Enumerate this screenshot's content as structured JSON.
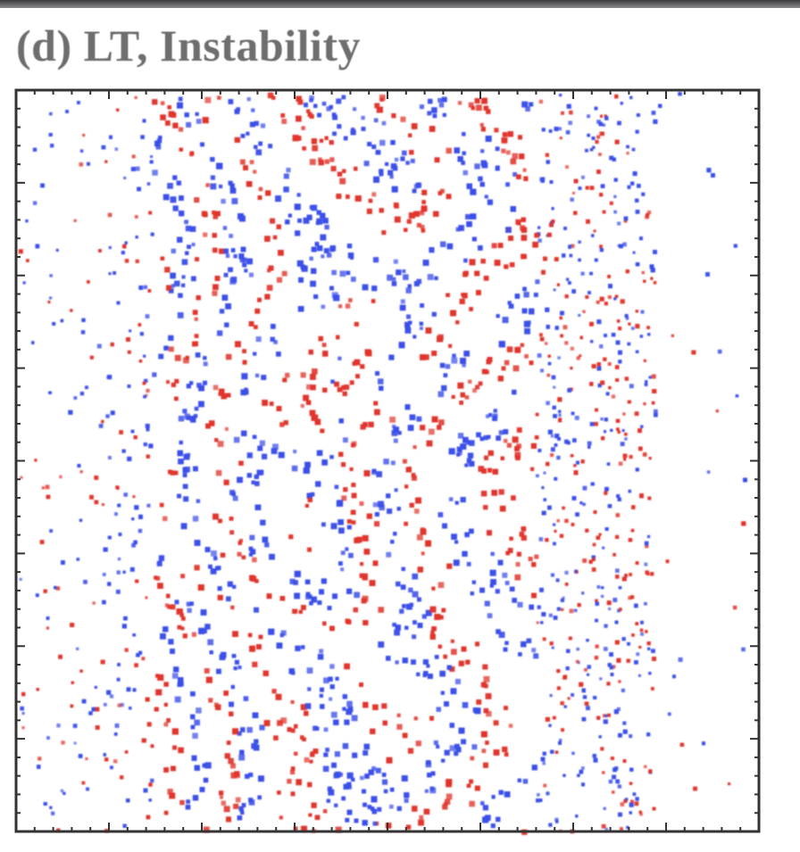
{
  "figure": {
    "title": "(d) LT, Instability"
  }
}
